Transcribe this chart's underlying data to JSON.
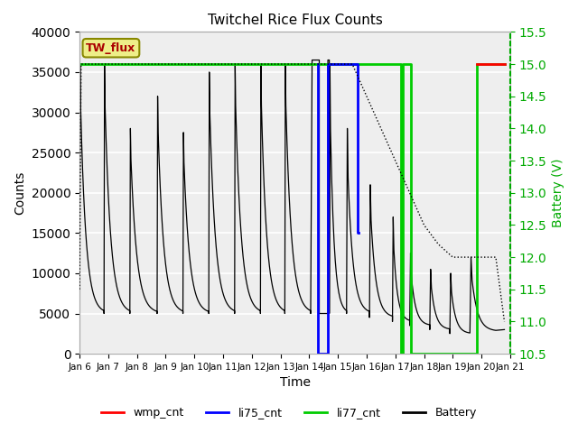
{
  "title": "Twitchel Rice Flux Counts",
  "xlabel": "Time",
  "ylabel_left": "Counts",
  "ylabel_right": "Battery (V)",
  "xlim": [
    0,
    15
  ],
  "ylim_left": [
    0,
    40000
  ],
  "ylim_right": [
    10.5,
    15.5
  ],
  "yticks_left": [
    0,
    5000,
    10000,
    15000,
    20000,
    25000,
    30000,
    35000,
    40000
  ],
  "yticks_right": [
    10.5,
    11.0,
    11.5,
    12.0,
    12.5,
    13.0,
    13.5,
    14.0,
    14.5,
    15.0,
    15.5
  ],
  "xtick_labels": [
    "Jan 6",
    "Jan 7",
    "Jan 8",
    "Jan 9",
    "Jan 10",
    "Jan 11",
    "Jan 12",
    "Jan 13",
    "Jan 14",
    "Jan 15",
    "Jan 16",
    "Jan 17",
    "Jan 18",
    "Jan 19",
    "Jan 20",
    "Jan 21"
  ],
  "fig_facecolor": "#ffffff",
  "plot_facecolor": "#eeeeee",
  "grid_color": "#cccccc",
  "colors": {
    "wmp_cnt": "#ff0000",
    "li75_cnt": "#0000ff",
    "li77_cnt": "#00cc00",
    "battery": "#000000",
    "flux_counts": "#000000"
  },
  "twflux_box_facecolor": "#eeee88",
  "twflux_box_edgecolor": "#888800",
  "twflux_text_color": "#aa0000",
  "right_spine_color": "#00aa00",
  "right_tick_color": "#00aa00",
  "right_label_color": "#00aa00"
}
